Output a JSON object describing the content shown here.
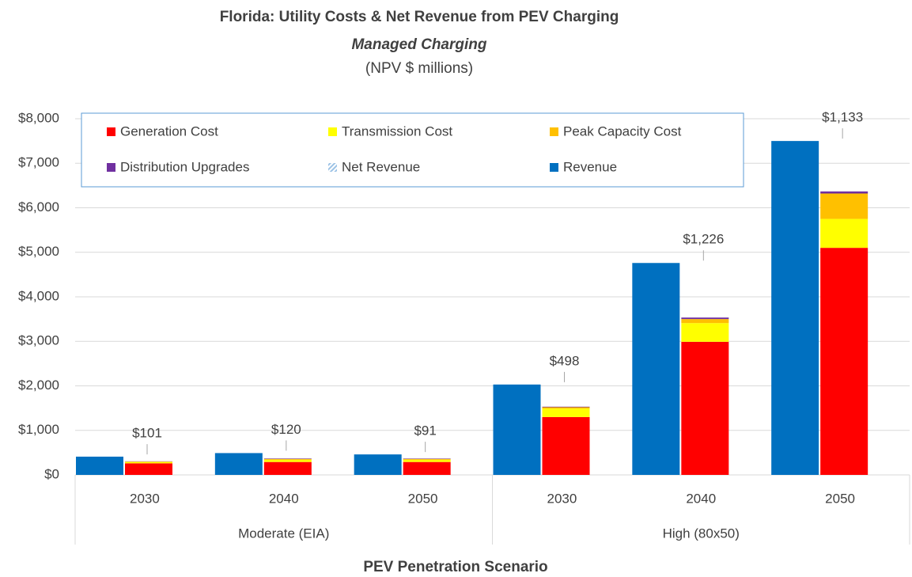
{
  "chart_data": {
    "type": "bar",
    "title": "Florida: Utility Costs & Net Revenue from PEV Charging",
    "subtitle": "Managed Charging",
    "units": "(NPV $ millions)",
    "xlabel": "PEV Penetration Scenario",
    "categories": [
      "2030",
      "2040",
      "2050",
      "2030",
      "2040",
      "2050"
    ],
    "groups": [
      {
        "label": "Moderate (EIA)",
        "span": 3
      },
      {
        "label": "High (80x50)",
        "span": 3
      }
    ],
    "series": [
      {
        "name": "Generation Cost",
        "color": "#ff0000",
        "stacked": true,
        "values": [
          260,
          290,
          290,
          1300,
          2990,
          5100
        ]
      },
      {
        "name": "Transmission Cost",
        "color": "#ffff00",
        "stacked": true,
        "values": [
          30,
          50,
          50,
          190,
          420,
          650
        ]
      },
      {
        "name": "Peak Capacity Cost",
        "color": "#ffc000",
        "stacked": true,
        "values": [
          10,
          20,
          20,
          30,
          90,
          570
        ]
      },
      {
        "name": "Distribution Upgrades",
        "color": "#7030a0",
        "stacked": true,
        "values": [
          5,
          10,
          9,
          12,
          34,
          47
        ]
      },
      {
        "name": "Net Revenue",
        "color": "#9dc3e6",
        "stacked": true,
        "hatched": true,
        "values": [
          101,
          120,
          91,
          498,
          1226,
          1133
        ],
        "value_labels": [
          "$101",
          "$120",
          "$91",
          "$498",
          "$1,226",
          "$1,133"
        ]
      },
      {
        "name": "Revenue",
        "color": "#0070c0",
        "stacked": false,
        "values": [
          410,
          490,
          460,
          2030,
          4760,
          7500
        ]
      }
    ],
    "ylim": [
      0,
      8000
    ],
    "yticks": [
      {
        "value": 0,
        "label": "$0"
      },
      {
        "value": 1000,
        "label": "$1,000"
      },
      {
        "value": 2000,
        "label": "$2,000"
      },
      {
        "value": 3000,
        "label": "$3,000"
      },
      {
        "value": 4000,
        "label": "$4,000"
      },
      {
        "value": 5000,
        "label": "$5,000"
      },
      {
        "value": 6000,
        "label": "$6,000"
      },
      {
        "value": 7000,
        "label": "$7,000"
      },
      {
        "value": 8000,
        "label": "$8,000"
      }
    ],
    "grid": true
  }
}
